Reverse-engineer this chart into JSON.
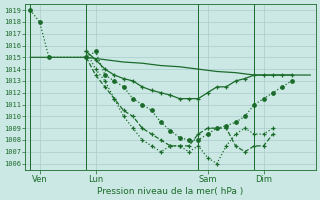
{
  "xlabel": "Pression niveau de la mer( hPa )",
  "ylim": [
    1005.5,
    1019.5
  ],
  "yticks": [
    1006,
    1007,
    1008,
    1009,
    1010,
    1011,
    1012,
    1013,
    1014,
    1015,
    1016,
    1017,
    1018,
    1019
  ],
  "background_color": "#cce8e4",
  "grid_color": "#aacccc",
  "line_color": "#1a6b2a",
  "xlim": [
    -0.3,
    15.3
  ],
  "day_labels": [
    "Ven",
    "Lun",
    "Sam",
    "Dim"
  ],
  "day_positions": [
    0.5,
    3.5,
    9.5,
    12.5
  ],
  "vline_positions": [
    0.0,
    3.0,
    9.0,
    12.0
  ],
  "series": [
    {
      "x": [
        0.0,
        0.5,
        1.0,
        3.0,
        3.5,
        4.0,
        4.5,
        5.0,
        5.5,
        6.0,
        6.5,
        7.0,
        7.5,
        8.0,
        8.5,
        9.0,
        9.5,
        10.0,
        10.5,
        11.0,
        11.5,
        12.0,
        12.5,
        13.0,
        13.5,
        14.0
      ],
      "y": [
        1019.0,
        1018.0,
        1015.0,
        1015.0,
        1015.5,
        1013.5,
        1013.0,
        1012.5,
        1011.5,
        1011.0,
        1010.5,
        1009.5,
        1008.8,
        1008.2,
        1008.0,
        1008.0,
        1008.5,
        1009.0,
        1009.2,
        1009.5,
        1010.0,
        1011.0,
        1011.5,
        1012.0,
        1012.5,
        1013.0
      ],
      "linestyle": ":",
      "marker": "o",
      "markersize": 2.5,
      "lw": 0.9
    },
    {
      "x": [
        0.0,
        3.0,
        4.0,
        5.0,
        6.0,
        7.0,
        8.0,
        9.0,
        10.0,
        11.0,
        12.0,
        13.0,
        14.0,
        15.0
      ],
      "y": [
        1015.0,
        1015.0,
        1014.8,
        1014.6,
        1014.5,
        1014.3,
        1014.2,
        1014.0,
        1013.8,
        1013.7,
        1013.5,
        1013.5,
        1013.5,
        1013.5
      ],
      "linestyle": "-",
      "marker": null,
      "markersize": 0,
      "lw": 0.9
    },
    {
      "x": [
        3.0,
        3.5,
        4.0,
        4.5,
        5.0,
        5.5,
        6.0,
        6.5,
        7.0,
        7.5,
        8.0,
        8.5,
        9.0,
        9.5,
        10.0,
        10.5,
        11.0,
        11.5,
        12.0,
        12.5,
        13.0,
        13.5,
        14.0
      ],
      "y": [
        1015.5,
        1014.8,
        1014.0,
        1013.5,
        1013.2,
        1013.0,
        1012.5,
        1012.2,
        1012.0,
        1011.8,
        1011.5,
        1011.5,
        1011.5,
        1012.0,
        1012.5,
        1012.5,
        1013.0,
        1013.2,
        1013.5,
        1013.5,
        1013.5,
        1013.5,
        1013.5
      ],
      "linestyle": "-",
      "marker": "+",
      "markersize": 3.5,
      "lw": 0.9
    },
    {
      "x": [
        3.0,
        3.5,
        4.0,
        4.5,
        5.0,
        5.5,
        6.0,
        6.5,
        7.0,
        7.5,
        8.0,
        8.5,
        9.0,
        9.5,
        10.0,
        10.5,
        11.0,
        11.5,
        12.0,
        12.5,
        13.0
      ],
      "y": [
        1015.0,
        1013.5,
        1012.5,
        1011.5,
        1010.5,
        1010.0,
        1009.0,
        1008.5,
        1008.0,
        1007.5,
        1007.5,
        1007.5,
        1008.5,
        1009.0,
        1009.0,
        1009.0,
        1007.5,
        1007.0,
        1007.5,
        1007.5,
        1008.5
      ],
      "linestyle": "--",
      "marker": "+",
      "markersize": 3.5,
      "lw": 0.9
    },
    {
      "x": [
        3.0,
        3.5,
        4.0,
        4.5,
        5.0,
        5.5,
        6.0,
        6.5,
        7.0,
        7.5,
        8.0,
        8.5,
        9.0,
        9.5,
        10.0,
        10.5,
        11.0,
        11.5,
        12.0,
        12.5,
        13.0
      ],
      "y": [
        1015.5,
        1014.0,
        1013.0,
        1011.5,
        1010.0,
        1009.0,
        1008.0,
        1007.5,
        1007.0,
        1007.5,
        1007.5,
        1007.0,
        1007.5,
        1006.5,
        1006.0,
        1007.5,
        1008.5,
        1009.0,
        1008.5,
        1008.5,
        1009.0
      ],
      "linestyle": ":",
      "marker": "+",
      "markersize": 3.5,
      "lw": 0.9
    }
  ]
}
